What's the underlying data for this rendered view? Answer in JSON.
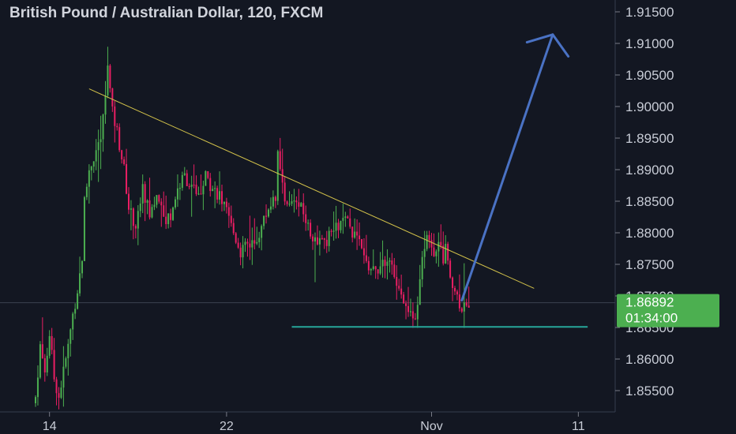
{
  "chart_data": {
    "type": "candlestick",
    "title": "British Pound / Australian Dollar, 120, FXCM",
    "ylim": [
      1.852,
      1.917
    ],
    "y_ticks": [
      "1.91500",
      "1.91000",
      "1.90500",
      "1.90000",
      "1.89500",
      "1.89000",
      "1.88500",
      "1.88000",
      "1.87500",
      "1.87000",
      "1.86500",
      "1.86000",
      "1.85500"
    ],
    "y_tick_values": [
      1.915,
      1.91,
      1.905,
      1.9,
      1.895,
      1.89,
      1.885,
      1.88,
      1.875,
      1.87,
      1.865,
      1.86,
      1.855
    ],
    "x_ticks": [
      "14",
      "22",
      "Nov",
      "11"
    ],
    "x_tick_bar_index": [
      6,
      82,
      170,
      233
    ],
    "current_price": "1.86892",
    "current_price_value": 1.86892,
    "countdown": "01:34:00",
    "colors": {
      "background": "#131722",
      "up": "#4caf50",
      "down": "#e91e63",
      "trendline": "#d4c34a",
      "support": "#26a69a",
      "arrow": "#4a72c4",
      "price_badge": "#4caf50",
      "price_line": "#3c4250"
    },
    "annotations": {
      "trendline": {
        "from": [
          23,
          1.9028
        ],
        "to": [
          214,
          1.8712
        ]
      },
      "support": {
        "from": [
          110,
          1.8651
        ],
        "to": [
          237,
          1.8651
        ]
      },
      "arrow": {
        "from": [
          183,
          1.8693
        ],
        "to": [
          222,
          1.9114
        ]
      }
    },
    "anchors": [
      [
        0,
        1.854
      ],
      [
        2,
        1.862
      ],
      [
        4,
        1.858
      ],
      [
        6,
        1.864
      ],
      [
        8,
        1.857
      ],
      [
        10,
        1.854
      ],
      [
        12,
        1.858
      ],
      [
        14,
        1.862
      ],
      [
        16,
        1.867
      ],
      [
        18,
        1.871
      ],
      [
        20,
        1.876
      ],
      [
        21,
        1.885
      ],
      [
        23,
        1.89
      ],
      [
        26,
        1.893
      ],
      [
        28,
        1.895
      ],
      [
        29,
        1.898
      ],
      [
        31,
        1.906
      ],
      [
        33,
        1.899
      ],
      [
        35,
        1.896
      ],
      [
        38,
        1.89
      ],
      [
        40,
        1.884
      ],
      [
        43,
        1.881
      ],
      [
        46,
        1.887
      ],
      [
        49,
        1.883
      ],
      [
        52,
        1.886
      ],
      [
        55,
        1.882
      ],
      [
        58,
        1.883
      ],
      [
        61,
        1.887
      ],
      [
        64,
        1.889
      ],
      [
        67,
        1.887
      ],
      [
        70,
        1.886
      ],
      [
        73,
        1.889
      ],
      [
        76,
        1.887
      ],
      [
        79,
        1.886
      ],
      [
        82,
        1.883
      ],
      [
        85,
        1.88
      ],
      [
        88,
        1.877
      ],
      [
        91,
        1.878
      ],
      [
        94,
        1.878
      ],
      [
        97,
        1.881
      ],
      [
        100,
        1.884
      ],
      [
        103,
        1.886
      ],
      [
        104,
        1.892
      ],
      [
        106,
        1.887
      ],
      [
        109,
        1.884
      ],
      [
        112,
        1.885
      ],
      [
        115,
        1.883
      ],
      [
        118,
        1.88
      ],
      [
        121,
        1.879
      ],
      [
        124,
        1.878
      ],
      [
        127,
        1.88
      ],
      [
        130,
        1.881
      ],
      [
        133,
        1.882
      ],
      [
        136,
        1.88
      ],
      [
        139,
        1.878
      ],
      [
        142,
        1.875
      ],
      [
        145,
        1.874
      ],
      [
        148,
        1.874
      ],
      [
        151,
        1.876
      ],
      [
        154,
        1.873
      ],
      [
        157,
        1.871
      ],
      [
        160,
        1.867
      ],
      [
        162,
        1.866
      ],
      [
        164,
        1.868
      ],
      [
        166,
        1.876
      ],
      [
        168,
        1.879
      ],
      [
        170,
        1.877
      ],
      [
        173,
        1.878
      ],
      [
        175,
        1.876
      ],
      [
        176,
        1.878
      ],
      [
        178,
        1.872
      ],
      [
        180,
        1.871
      ],
      [
        182,
        1.869
      ],
      [
        184,
        1.868
      ],
      [
        186,
        1.869
      ]
    ]
  }
}
